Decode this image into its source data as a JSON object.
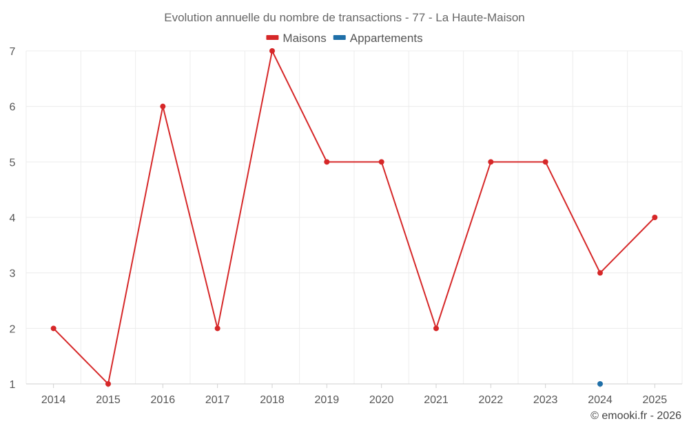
{
  "chart_data": {
    "type": "line",
    "title": "Evolution annuelle du nombre de transactions - 77 - La Haute-Maison",
    "categories": [
      "2014",
      "2015",
      "2016",
      "2017",
      "2018",
      "2019",
      "2020",
      "2021",
      "2022",
      "2023",
      "2024",
      "2025"
    ],
    "ylim": [
      1,
      7
    ],
    "yticks": [
      "1",
      "2",
      "3",
      "4",
      "5",
      "6",
      "7"
    ],
    "grid": true,
    "legend_position": "top-center",
    "series": [
      {
        "name": "Maisons",
        "color": "#d62728",
        "values": [
          2,
          1,
          6,
          2,
          7,
          5,
          5,
          2,
          5,
          5,
          3,
          4
        ]
      },
      {
        "name": "Appartements",
        "color": "#1f6fa8",
        "values": [
          null,
          null,
          null,
          null,
          null,
          null,
          null,
          null,
          null,
          null,
          1,
          null
        ]
      }
    ]
  },
  "credit": "© emooki.fr - 2026"
}
